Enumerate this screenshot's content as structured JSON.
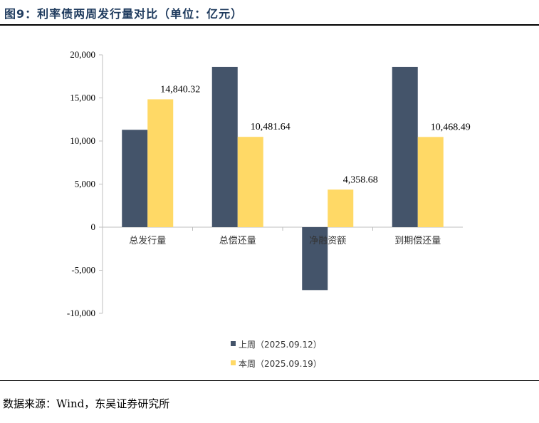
{
  "title": "图9：利率债两周发行量对比（单位：亿元）",
  "source": "数据来源：Wind，东吴证券研究所",
  "chart_data": {
    "type": "bar",
    "categories": [
      "总发行量",
      "总偿还量",
      "净融资额",
      "到期偿还量"
    ],
    "series": [
      {
        "name": "上周（2025.09.12）",
        "values": [
          11300,
          18600,
          -7300,
          18600
        ],
        "color": "#44546a",
        "labels": [
          null,
          null,
          null,
          null
        ]
      },
      {
        "name": "本周（2025.09.19）",
        "values": [
          14840.32,
          10481.64,
          4358.68,
          10468.49
        ],
        "color": "#ffd966",
        "labels": [
          "14,840.32",
          "10,481.64",
          "4,358.68",
          "10,468.49"
        ]
      }
    ],
    "ylim": [
      -10000,
      20000
    ],
    "yticks": [
      20000,
      15000,
      10000,
      5000,
      0,
      -5000,
      -10000
    ],
    "ytick_labels": [
      "20,000",
      "15,000",
      "10,000",
      "5,000",
      "0",
      "-5,000",
      "-10,000"
    ],
    "grid": false,
    "legend": "bottom"
  }
}
